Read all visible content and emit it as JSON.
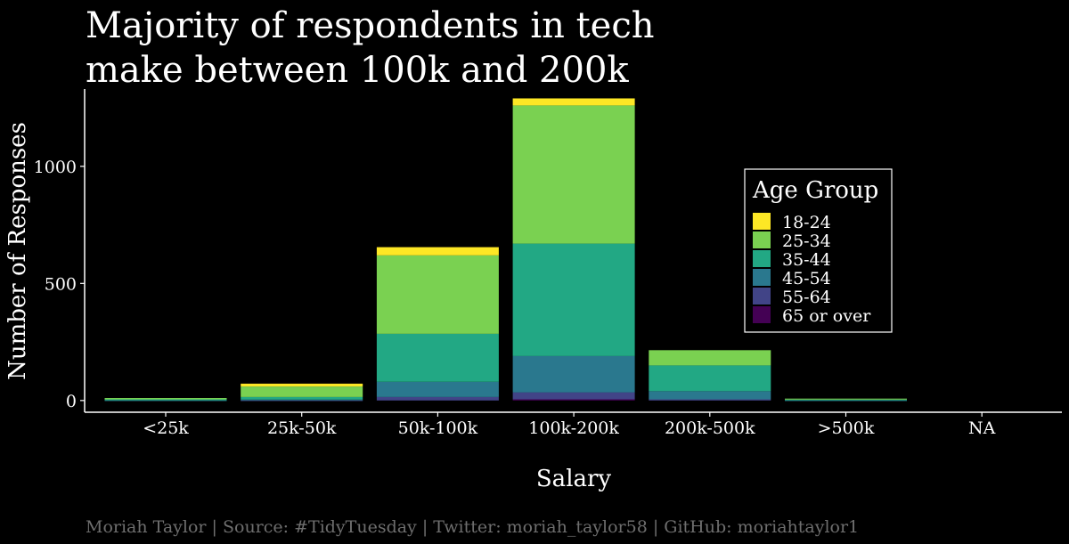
{
  "chart_data": {
    "type": "bar",
    "stacked": true,
    "title_lines": [
      "Majority of respondents in tech",
      "make between 100k and 200k"
    ],
    "xlabel": "Salary",
    "ylabel": "Number of Responses",
    "caption": "Moriah Taylor | Source: #TidyTuesday | Twitter: moriah_taylor58 | GitHub: moriahtaylor1",
    "categories": [
      "<25k",
      "25k-50k",
      "50k-100k",
      "100k-200k",
      "200k-500k",
      ">500k",
      "NA"
    ],
    "yticks": [
      0,
      500,
      1000
    ],
    "ylim": [
      -50,
      1330
    ],
    "grid": false,
    "legend": {
      "title": "Age Group",
      "placement": "right",
      "order": [
        "18-24",
        "25-34",
        "35-44",
        "45-54",
        "55-64",
        "65 or over"
      ]
    },
    "series": [
      {
        "name": "65 or over",
        "color": "#440154",
        "values": [
          0,
          0,
          0,
          5,
          0,
          0,
          0
        ]
      },
      {
        "name": "55-64",
        "color": "#414487",
        "values": [
          0,
          1,
          15,
          30,
          5,
          0,
          0
        ]
      },
      {
        "name": "45-54",
        "color": "#2a788e",
        "values": [
          1,
          3,
          65,
          155,
          35,
          1,
          0
        ]
      },
      {
        "name": "35-44",
        "color": "#22a884",
        "values": [
          4,
          11,
          205,
          480,
          110,
          3,
          0
        ]
      },
      {
        "name": "25-34",
        "color": "#7ad151",
        "values": [
          6,
          45,
          335,
          590,
          65,
          4,
          0
        ]
      },
      {
        "name": "18-24",
        "color": "#fde725",
        "values": [
          0,
          12,
          35,
          30,
          0,
          0,
          0
        ]
      }
    ]
  }
}
